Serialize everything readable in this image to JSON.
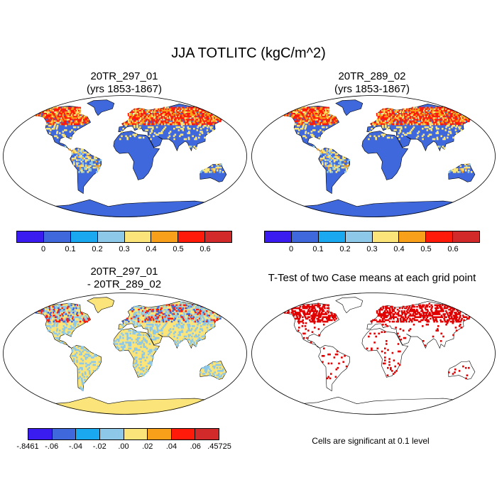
{
  "title": "JJA TOTLITC (kgC/m^2)",
  "panels": [
    {
      "title_line1": "20TR_297_01",
      "title_line2": "(yrs 1853-1867)",
      "ocean": "#ffffff",
      "land": "#3f68dc",
      "antarctica": "#3f68dc",
      "hot": "#ff1a0a",
      "warm": "#ffe066",
      "style": "abs"
    },
    {
      "title_line1": "20TR_289_02",
      "title_line2": "(yrs 1853-1867)",
      "ocean": "#ffffff",
      "land": "#3f68dc",
      "antarctica": "#3f68dc",
      "hot": "#ff1a0a",
      "warm": "#ffe066",
      "style": "abs"
    },
    {
      "title_line1": "20TR_297_01",
      "title_line2": "- 20TR_289_02",
      "ocean": "#ffffff",
      "land": "#fbe57a",
      "antarctica": "#fbe57a",
      "hot": "#8ec8e8",
      "warm": "#3f68dc",
      "style": "diff"
    },
    {
      "title_line1": "T-Test of two Case means at each grid point",
      "title_line2": "",
      "ocean": "#ffffff",
      "land": "#ffffff",
      "antarctica": "#ffffff",
      "hot": "#e00000",
      "warm": "#e00000",
      "style": "ttest"
    }
  ],
  "colorbar_abs": {
    "colors": [
      "#3a1cf0",
      "#3f68dc",
      "#1aa8f0",
      "#8ec8e8",
      "#fbe57a",
      "#f9a01a",
      "#ff1a0a",
      "#d22a2a"
    ],
    "labels": [
      "0",
      "0.1",
      "0.2",
      "0.3",
      "0.4",
      "0.5",
      "0.6"
    ]
  },
  "colorbar_diff": {
    "colors": [
      "#3a1cf0",
      "#3f68dc",
      "#1aa8f0",
      "#8ec8e8",
      "#fbe57a",
      "#f9a01a",
      "#ff1a0a",
      "#d22a2a"
    ],
    "labels": [
      "-.8461",
      "-.06",
      "-.04",
      "-.02",
      ".00",
      ".02",
      ".04",
      ".06",
      ".45725"
    ]
  },
  "significance_note": "Cells are significant at 0.1 level"
}
